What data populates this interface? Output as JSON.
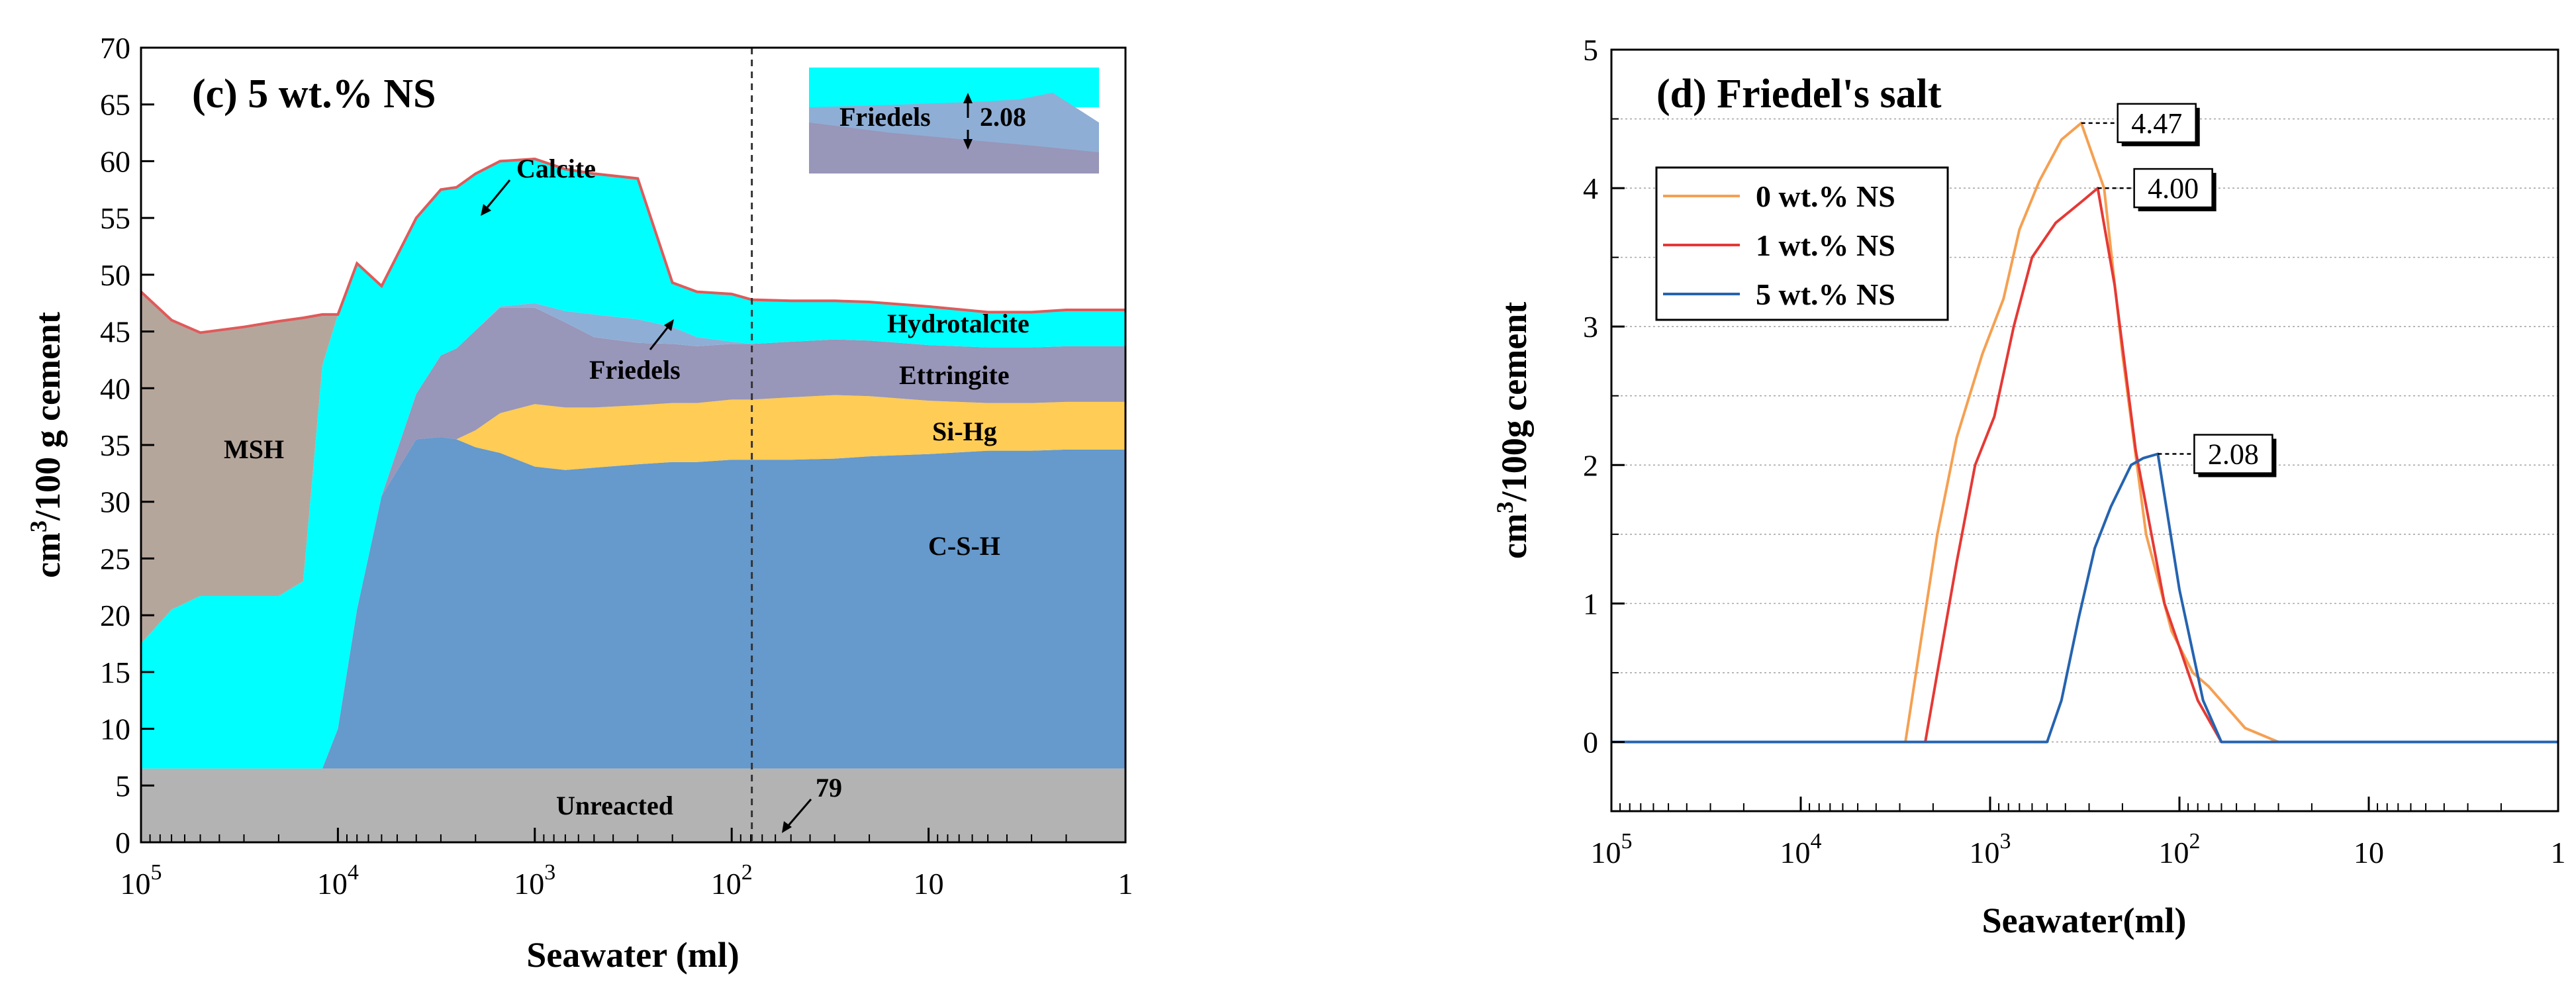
{
  "chart_data": [
    {
      "type": "area",
      "title": "(c) 5 wt.% NS",
      "xlabel": "Seawater (ml)",
      "ylabel": "cm3/100 g cement",
      "ylabel_base": "cm",
      "ylabel_sup": "3",
      "ylabel_rest": "/100 g cement",
      "x_scale": "log-reversed",
      "xlim": [
        100000,
        1
      ],
      "ylim": [
        0,
        70
      ],
      "yticks": [
        0,
        5,
        10,
        15,
        20,
        25,
        30,
        35,
        40,
        45,
        50,
        55,
        60,
        65,
        70
      ],
      "xticks": [
        {
          "value": 100000,
          "base": "10",
          "exp": "5"
        },
        {
          "value": 10000,
          "base": "10",
          "exp": "4"
        },
        {
          "value": 1000,
          "base": "10",
          "exp": "3"
        },
        {
          "value": 100,
          "base": "10",
          "exp": "2"
        },
        {
          "value": 10,
          "base": "10",
          "exp": ""
        },
        {
          "value": 1,
          "base": "1",
          "exp": ""
        }
      ],
      "x": [
        100000,
        70000,
        50000,
        30000,
        20000,
        15000,
        12000,
        10000,
        8000,
        6000,
        4000,
        3000,
        2500,
        2000,
        1500,
        1000,
        700,
        500,
        300,
        200,
        150,
        100,
        79,
        50,
        30,
        20,
        10,
        5,
        3,
        2,
        1
      ],
      "series": [
        {
          "name": "Unreacted",
          "color": "#b3b3b3",
          "values": [
            6.5,
            6.5,
            6.5,
            6.5,
            6.5,
            6.5,
            6.5,
            6.5,
            6.5,
            6.5,
            6.5,
            6.5,
            6.5,
            6.5,
            6.5,
            6.5,
            6.5,
            6.5,
            6.5,
            6.5,
            6.5,
            6.5,
            6.5,
            6.5,
            6.5,
            6.5,
            6.5,
            6.5,
            6.5,
            6.5,
            6.5
          ]
        },
        {
          "name": "C-S-H",
          "color": "#6699cc",
          "values": [
            0,
            0,
            0,
            0,
            0,
            0,
            0,
            3.5,
            14,
            24,
            29,
            29.2,
            29,
            28.3,
            27.8,
            26.6,
            26.3,
            26.5,
            26.8,
            27.0,
            27.0,
            27.2,
            27.2,
            27.2,
            27.3,
            27.5,
            27.7,
            28.0,
            28.0,
            28.1,
            28.1
          ]
        },
        {
          "name": "Si-Hg",
          "color": "#ffcc55",
          "values": [
            0,
            0,
            0,
            0,
            0,
            0,
            0,
            0,
            0,
            0,
            0,
            0,
            0,
            1.5,
            3.5,
            5.5,
            5.5,
            5.3,
            5.2,
            5.2,
            5.2,
            5.3,
            5.3,
            5.5,
            5.6,
            5.3,
            4.7,
            4.2,
            4.2,
            4.2,
            4.2
          ]
        },
        {
          "name": "Ettringite",
          "color": "#9896b9",
          "values": [
            0,
            0,
            0,
            0,
            0,
            0,
            0,
            0,
            0,
            0,
            4.0,
            7.2,
            8.0,
            8.8,
            9.3,
            8.5,
            7.5,
            6.2,
            5.5,
            5.2,
            5.0,
            4.9,
            4.9,
            4.9,
            4.9,
            4.9,
            4.9,
            4.9,
            4.9,
            4.9,
            4.9
          ]
        },
        {
          "name": "Friedels",
          "color": "#8faed5",
          "values": [
            0,
            0,
            0,
            0,
            0,
            0,
            0,
            0,
            0,
            0,
            0,
            0,
            0,
            0,
            0.1,
            0.4,
            1.0,
            2.0,
            2.08,
            1.5,
            0.8,
            0.2,
            0,
            0,
            0,
            0,
            0,
            0,
            0,
            0,
            0
          ]
        },
        {
          "name": "Hydrotalcite",
          "color": "#00ffff",
          "values": [
            11,
            14,
            15.2,
            15.2,
            15.2,
            16.5,
            35.5,
            36.5,
            30.5,
            18.5,
            15.5,
            14.6,
            14.2,
            13.8,
            12.8,
            12.7,
            12.5,
            12.4,
            12.4,
            3.9,
            4.0,
            4.2,
            3.9,
            3.6,
            3.4,
            3.4,
            3.4,
            3.1,
            3.1,
            3.2,
            3.2
          ]
        },
        {
          "name": "MSH",
          "color": "#b5a69c",
          "values": [
            31,
            25.5,
            23.2,
            23.7,
            24.2,
            23.2,
            4.5,
            0,
            0,
            0,
            0,
            0,
            0,
            0,
            0,
            0,
            0,
            0,
            0,
            0,
            0,
            0,
            0,
            0,
            0,
            0,
            0,
            0,
            0,
            0,
            0
          ]
        },
        {
          "name": "Calcite",
          "color": "#e05a5a",
          "values": [
            0,
            0,
            0,
            0,
            0,
            0,
            0,
            0,
            0,
            0,
            0,
            0,
            0,
            0,
            0,
            0,
            0,
            0,
            0,
            0,
            0,
            0,
            0,
            0,
            0,
            0,
            0,
            0,
            0,
            0,
            0
          ]
        }
      ],
      "region_labels": [
        "MSH",
        "Calcite",
        "Friedels",
        "Hydrotalcite",
        "Ettringite",
        "Si-Hg",
        "C-S-H",
        "Unreacted"
      ],
      "marker": {
        "x": 79,
        "label": "79"
      },
      "inset": {
        "label": "Friedels",
        "value": "2.08"
      }
    },
    {
      "type": "line",
      "title": "(d) Friedel's salt",
      "xlabel": "Seawater(ml)",
      "ylabel": "cm3/100g cement",
      "ylabel_base": "cm",
      "ylabel_sup": "3",
      "ylabel_rest": "/100g cement",
      "x_scale": "log-reversed",
      "xlim": [
        100000,
        1
      ],
      "ylim": [
        -0.5,
        5
      ],
      "yticks": [
        0,
        1,
        2,
        3,
        4,
        5
      ],
      "xticks": [
        {
          "value": 100000,
          "base": "10",
          "exp": "5"
        },
        {
          "value": 10000,
          "base": "10",
          "exp": "4"
        },
        {
          "value": 1000,
          "base": "10",
          "exp": "3"
        },
        {
          "value": 100,
          "base": "10",
          "exp": "2"
        },
        {
          "value": 10,
          "base": "10",
          "exp": ""
        },
        {
          "value": 1,
          "base": "1",
          "exp": ""
        }
      ],
      "series": [
        {
          "name": "0 wt.% NS",
          "color": "#f5a052",
          "x": [
            100000,
            2800,
            2400,
            1900,
            1500,
            1100,
            850,
            700,
            550,
            420,
            330,
            250,
            200,
            150,
            110,
            85,
            70,
            45,
            30,
            1
          ],
          "y": [
            0,
            0,
            0.6,
            1.5,
            2.2,
            2.8,
            3.2,
            3.7,
            4.05,
            4.35,
            4.47,
            4.0,
            2.8,
            1.5,
            0.8,
            0.5,
            0.4,
            0.1,
            0,
            0
          ]
        },
        {
          "name": "1 wt.% NS",
          "color": "#e53935",
          "x": [
            100000,
            2200,
            1900,
            1500,
            1200,
            950,
            750,
            600,
            450,
            330,
            270,
            220,
            170,
            120,
            80,
            60,
            1
          ],
          "y": [
            0,
            0,
            0.5,
            1.3,
            2.0,
            2.35,
            3.0,
            3.5,
            3.75,
            3.9,
            4.0,
            3.3,
            2.1,
            1.0,
            0.3,
            0,
            0
          ]
        },
        {
          "name": "5 wt.% NS",
          "color": "#2563b0",
          "x": [
            100000,
            500,
            420,
            340,
            280,
            230,
            180,
            155,
            130,
            100,
            75,
            60,
            1
          ],
          "y": [
            0,
            0,
            0.3,
            0.9,
            1.4,
            1.7,
            2.0,
            2.05,
            2.08,
            1.1,
            0.3,
            0,
            0
          ]
        }
      ],
      "annotations": [
        {
          "label": "4.47",
          "x": 330,
          "y": 4.47
        },
        {
          "label": "4.00",
          "x": 270,
          "y": 4.0
        },
        {
          "label": "2.08",
          "x": 130,
          "y": 2.08
        }
      ],
      "legend_position": "top-left"
    }
  ]
}
